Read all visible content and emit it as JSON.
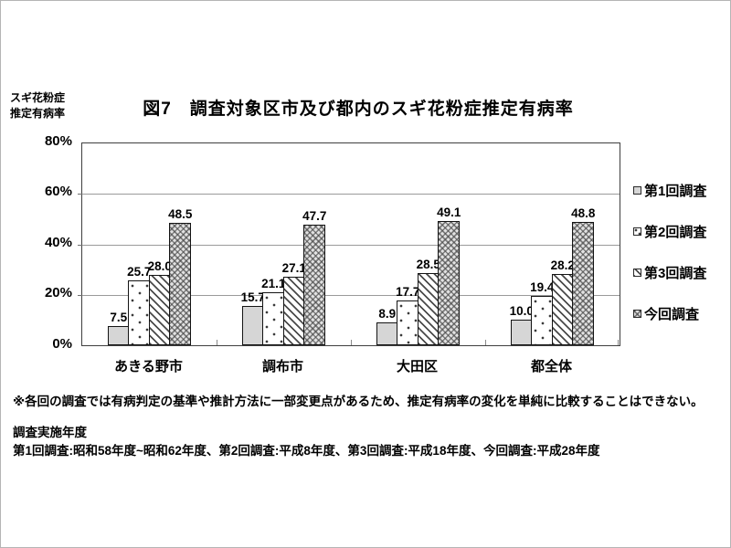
{
  "chart_data": {
    "type": "bar",
    "title": "図7　調査対象区市及び都内のスギ花粉症推定有病率",
    "ylabel": "スギ花粉症推定有病率",
    "ylabel_lines": [
      "スギ花粉症",
      "推定有病率"
    ],
    "xlabel": "",
    "categories": [
      "あきる野市",
      "調布市",
      "大田区",
      "都全体"
    ],
    "series": [
      {
        "name": "第1回調査",
        "pattern": "solid-light-gray",
        "values": [
          7.5,
          15.7,
          8.9,
          10.0
        ]
      },
      {
        "name": "第2回調査",
        "pattern": "sparse-dots",
        "values": [
          25.7,
          21.1,
          17.7,
          19.4
        ]
      },
      {
        "name": "第3回調査",
        "pattern": "diagonal-hatch",
        "values": [
          28.0,
          27.1,
          28.5,
          28.2
        ]
      },
      {
        "name": "今回調査",
        "pattern": "dense-crosshatch",
        "values": [
          48.5,
          47.7,
          49.1,
          48.8
        ]
      }
    ],
    "y_ticks": [
      "80%",
      "60%",
      "40%",
      "20%",
      "0%"
    ],
    "ylim": [
      0,
      80
    ],
    "grid": true,
    "legend_position": "right",
    "value_labels_decimals": 1
  },
  "notes": {
    "caution": "※各回の調査では有病判定の基準や推計方法に一部変更点があるため、推定有病率の変化を単純に比較することはできない。",
    "survey_years_heading": "調査実施年度",
    "survey_years": "第1回調査:昭和58年度~昭和62年度、第2回調査:平成8年度、第3回調査:平成18年度、今回調査:平成28年度"
  },
  "colors": {
    "frame": "#3f3f3f",
    "gridline": "#9a9a9a",
    "bar_outline": "#141414",
    "series1_fill": "#d6d6d6",
    "text": "#000000"
  }
}
